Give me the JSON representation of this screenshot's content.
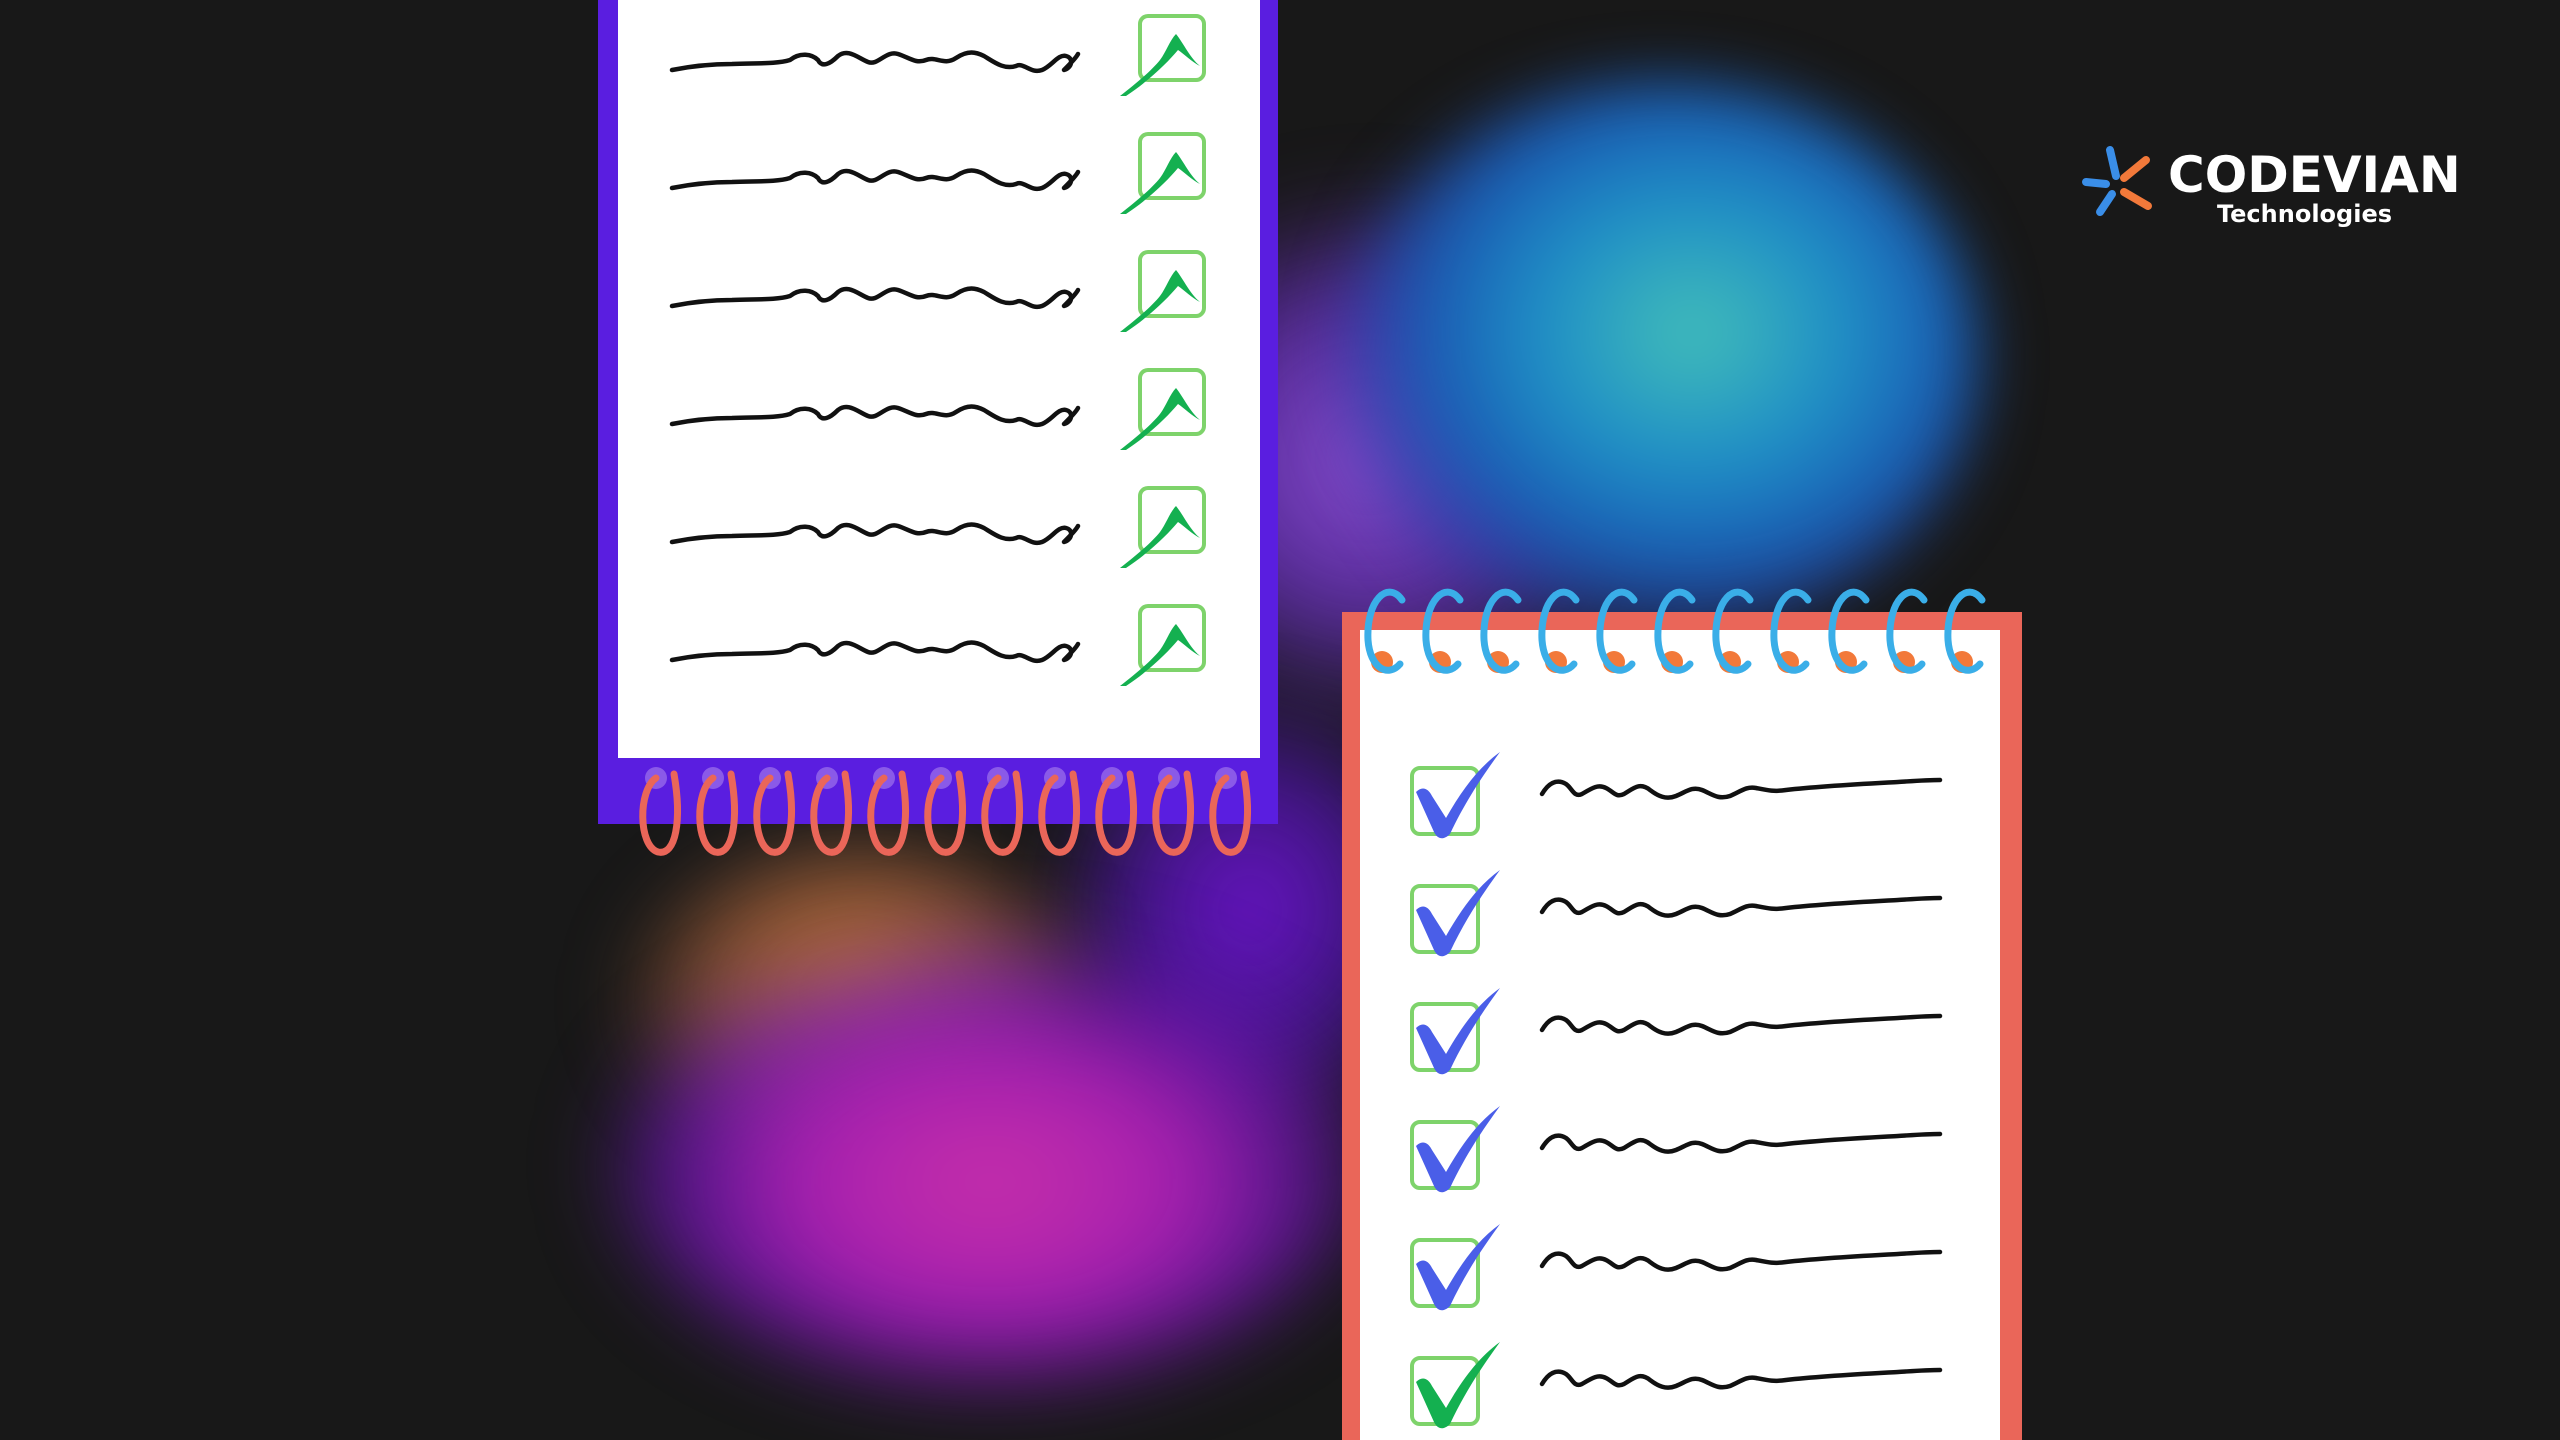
{
  "brand": {
    "name": "CODEVIAN",
    "tagline": "Technologies",
    "colors": {
      "blue": "#3a8ee8",
      "orange": "#f2793a"
    }
  },
  "colors": {
    "background": "#181818",
    "notepad_left_border": "#5a1ee0",
    "notepad_right_border": "#ea6659",
    "left_ring": "#ea6659",
    "right_ring": "#3aaee8",
    "checkbox_border": "#7ed36b",
    "check_green": "#14b050",
    "check_blue": "#4a5ee8"
  },
  "icons": {
    "logo": "asterisk-spark-icon",
    "checkmark": "checkmark-icon",
    "checkbox": "checkbox-icon"
  },
  "notepads": [
    {
      "id": "left",
      "rows": 6,
      "checked": [
        true,
        true,
        true,
        true,
        true,
        true
      ],
      "check_color": "green"
    },
    {
      "id": "right",
      "rows": 6,
      "checked": [
        true,
        true,
        true,
        true,
        true,
        true
      ],
      "check_color": [
        "blue",
        "blue",
        "blue",
        "blue",
        "blue",
        "green"
      ]
    }
  ]
}
